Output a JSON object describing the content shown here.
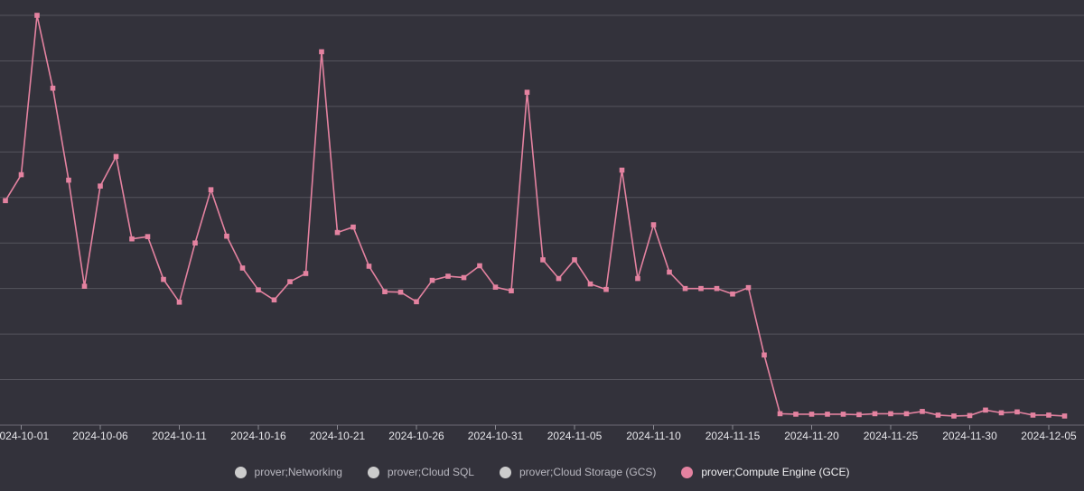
{
  "colors": {
    "background": "#33323b",
    "series": "#e482a0",
    "inactive": "#cccccc"
  },
  "chart_data": {
    "type": "line",
    "x_type": "date",
    "x_start": "2024-09-30",
    "x_end": "2024-12-07",
    "ylim": [
      0,
      9
    ],
    "grid": true,
    "y_gridlines": [
      1,
      2,
      3,
      4,
      5,
      6,
      7,
      8,
      9
    ],
    "y_tick_labels_visible": false,
    "x_ticks": [
      "2024-10-01",
      "2024-10-06",
      "2024-10-11",
      "2024-10-16",
      "2024-10-21",
      "2024-10-26",
      "2024-10-31",
      "2024-11-05",
      "2024-11-10",
      "2024-11-15",
      "2024-11-20",
      "2024-11-25",
      "2024-11-30",
      "2024-12-05"
    ],
    "legend_position": "bottom",
    "legend": [
      {
        "name": "prover;Networking",
        "active": false
      },
      {
        "name": "prover;Cloud SQL",
        "active": false
      },
      {
        "name": "prover;Cloud Storage (GCS)",
        "active": false
      },
      {
        "name": "prover;Compute Engine (GCE)",
        "active": true
      }
    ],
    "series": [
      {
        "name": "prover;Compute Engine (GCE)",
        "color": "#e482a0",
        "points": [
          [
            "2024-09-30",
            4.93
          ],
          [
            "2024-10-01",
            5.5
          ],
          [
            "2024-10-02",
            9.0
          ],
          [
            "2024-10-03",
            7.4
          ],
          [
            "2024-10-04",
            5.38
          ],
          [
            "2024-10-05",
            3.05
          ],
          [
            "2024-10-06",
            5.25
          ],
          [
            "2024-10-07",
            5.9
          ],
          [
            "2024-10-08",
            4.09
          ],
          [
            "2024-10-09",
            4.14
          ],
          [
            "2024-10-10",
            3.2
          ],
          [
            "2024-10-11",
            2.7
          ],
          [
            "2024-10-12",
            4.0
          ],
          [
            "2024-10-13",
            5.17
          ],
          [
            "2024-10-14",
            4.15
          ],
          [
            "2024-10-15",
            3.45
          ],
          [
            "2024-10-16",
            2.97
          ],
          [
            "2024-10-17",
            2.75
          ],
          [
            "2024-10-18",
            3.15
          ],
          [
            "2024-10-19",
            3.33
          ],
          [
            "2024-10-20",
            8.2
          ],
          [
            "2024-10-21",
            4.23
          ],
          [
            "2024-10-22",
            4.35
          ],
          [
            "2024-10-23",
            3.49
          ],
          [
            "2024-10-24",
            2.93
          ],
          [
            "2024-10-25",
            2.92
          ],
          [
            "2024-10-26",
            2.71
          ],
          [
            "2024-10-27",
            3.18
          ],
          [
            "2024-10-28",
            3.27
          ],
          [
            "2024-10-29",
            3.24
          ],
          [
            "2024-10-30",
            3.5
          ],
          [
            "2024-10-31",
            3.03
          ],
          [
            "2024-11-01",
            2.95
          ],
          [
            "2024-11-02",
            7.31
          ],
          [
            "2024-11-03",
            3.63
          ],
          [
            "2024-11-04",
            3.22
          ],
          [
            "2024-11-05",
            3.63
          ],
          [
            "2024-11-06",
            3.1
          ],
          [
            "2024-11-07",
            2.98
          ],
          [
            "2024-11-08",
            5.6
          ],
          [
            "2024-11-09",
            3.22
          ],
          [
            "2024-11-10",
            4.4
          ],
          [
            "2024-11-11",
            3.36
          ],
          [
            "2024-11-12",
            3.0
          ],
          [
            "2024-11-13",
            3.0
          ],
          [
            "2024-11-14",
            3.0
          ],
          [
            "2024-11-15",
            2.88
          ],
          [
            "2024-11-16",
            3.02
          ],
          [
            "2024-11-17",
            1.54
          ],
          [
            "2024-11-18",
            0.25
          ],
          [
            "2024-11-19",
            0.24
          ],
          [
            "2024-11-20",
            0.24
          ],
          [
            "2024-11-21",
            0.24
          ],
          [
            "2024-11-22",
            0.24
          ],
          [
            "2024-11-23",
            0.23
          ],
          [
            "2024-11-24",
            0.25
          ],
          [
            "2024-11-25",
            0.25
          ],
          [
            "2024-11-26",
            0.25
          ],
          [
            "2024-11-27",
            0.3
          ],
          [
            "2024-11-28",
            0.22
          ],
          [
            "2024-11-29",
            0.2
          ],
          [
            "2024-11-30",
            0.21
          ],
          [
            "2024-12-01",
            0.33
          ],
          [
            "2024-12-02",
            0.27
          ],
          [
            "2024-12-03",
            0.29
          ],
          [
            "2024-12-04",
            0.22
          ],
          [
            "2024-12-05",
            0.22
          ],
          [
            "2024-12-06",
            0.2
          ]
        ]
      }
    ]
  }
}
